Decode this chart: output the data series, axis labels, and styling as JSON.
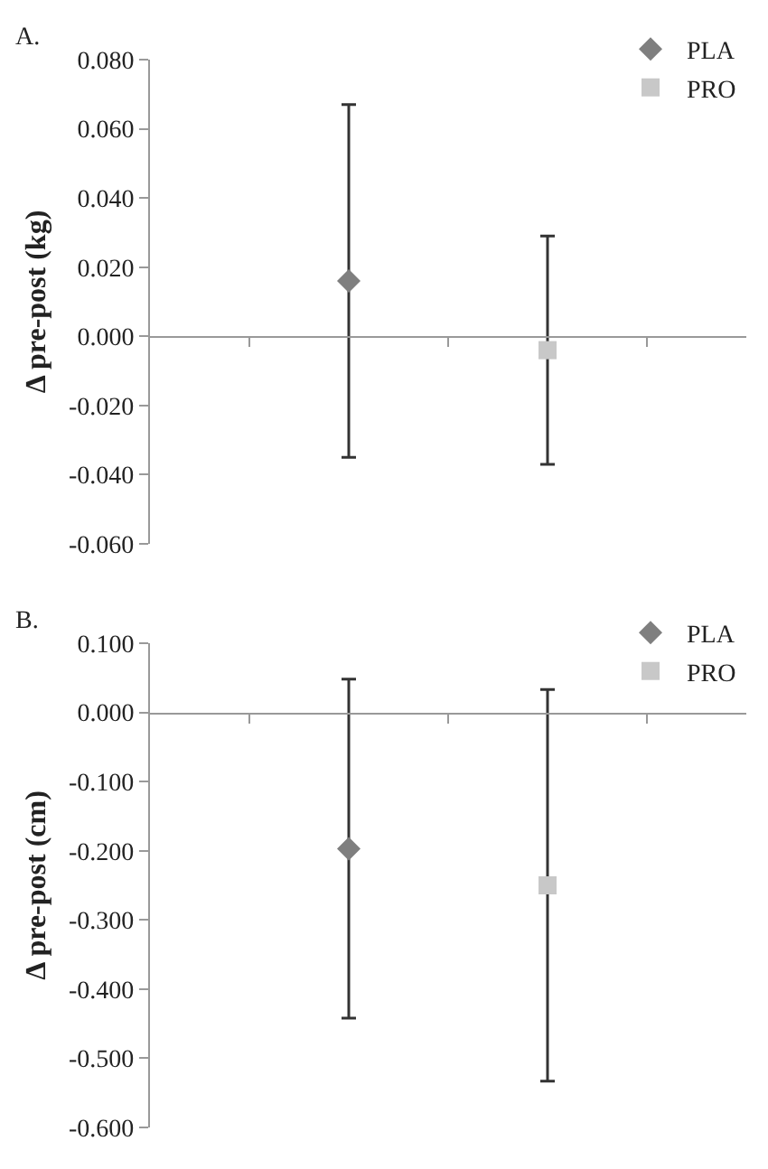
{
  "chart_data": [
    {
      "type": "scatter",
      "title": "A.",
      "ylabel": "Δ pre-post (kg)",
      "categories": [
        null,
        null
      ],
      "series": [
        {
          "name": "PLA",
          "color": "#7f7f7f",
          "marker": "diamond",
          "values": [
            0.016,
            null
          ],
          "errors": [
            0.051,
            null
          ]
        },
        {
          "name": "PRO",
          "color": "#c8c8c8",
          "marker": "square",
          "values": [
            null,
            -0.004
          ],
          "errors": [
            null,
            0.033
          ]
        }
      ],
      "ylim": [
        -0.06,
        0.08
      ],
      "yticks": [
        {
          "value": -0.06,
          "label": "-0.060"
        },
        {
          "value": -0.04,
          "label": "-0.040"
        },
        {
          "value": -0.02,
          "label": "-0.020"
        },
        {
          "value": 0,
          "label": "0.000"
        },
        {
          "value": 0.02,
          "label": "0.020"
        },
        {
          "value": 0.04,
          "label": "0.040"
        },
        {
          "value": 0.06,
          "label": "0.060"
        },
        {
          "value": 0.08,
          "label": "0.080"
        }
      ],
      "tick_labels": "y",
      "legend": "top right"
    },
    {
      "type": "scatter",
      "title": "B.",
      "ylabel": "Δ pre-post (cm)",
      "categories": [
        null,
        null
      ],
      "series": [
        {
          "name": "PLA",
          "color": "#7f7f7f",
          "marker": "diamond",
          "values": [
            -0.197,
            null
          ],
          "errors": [
            0.245,
            null
          ]
        },
        {
          "name": "PRO",
          "color": "#c8c8c8",
          "marker": "square",
          "values": [
            null,
            -0.25
          ],
          "errors": [
            null,
            0.283
          ]
        }
      ],
      "ylim": [
        -0.6,
        0.1
      ],
      "yticks": [
        {
          "value": -0.6,
          "label": "-0.600"
        },
        {
          "value": -0.5,
          "label": "-0.500"
        },
        {
          "value": -0.4,
          "label": "-0.400"
        },
        {
          "value": -0.3,
          "label": "-0.300"
        },
        {
          "value": -0.2,
          "label": "-0.200"
        },
        {
          "value": -0.1,
          "label": "-0.100"
        },
        {
          "value": 0,
          "label": "0.000"
        },
        {
          "value": 0.1,
          "label": "0.100"
        }
      ],
      "tick_labels": "y",
      "legend": "top right"
    }
  ]
}
